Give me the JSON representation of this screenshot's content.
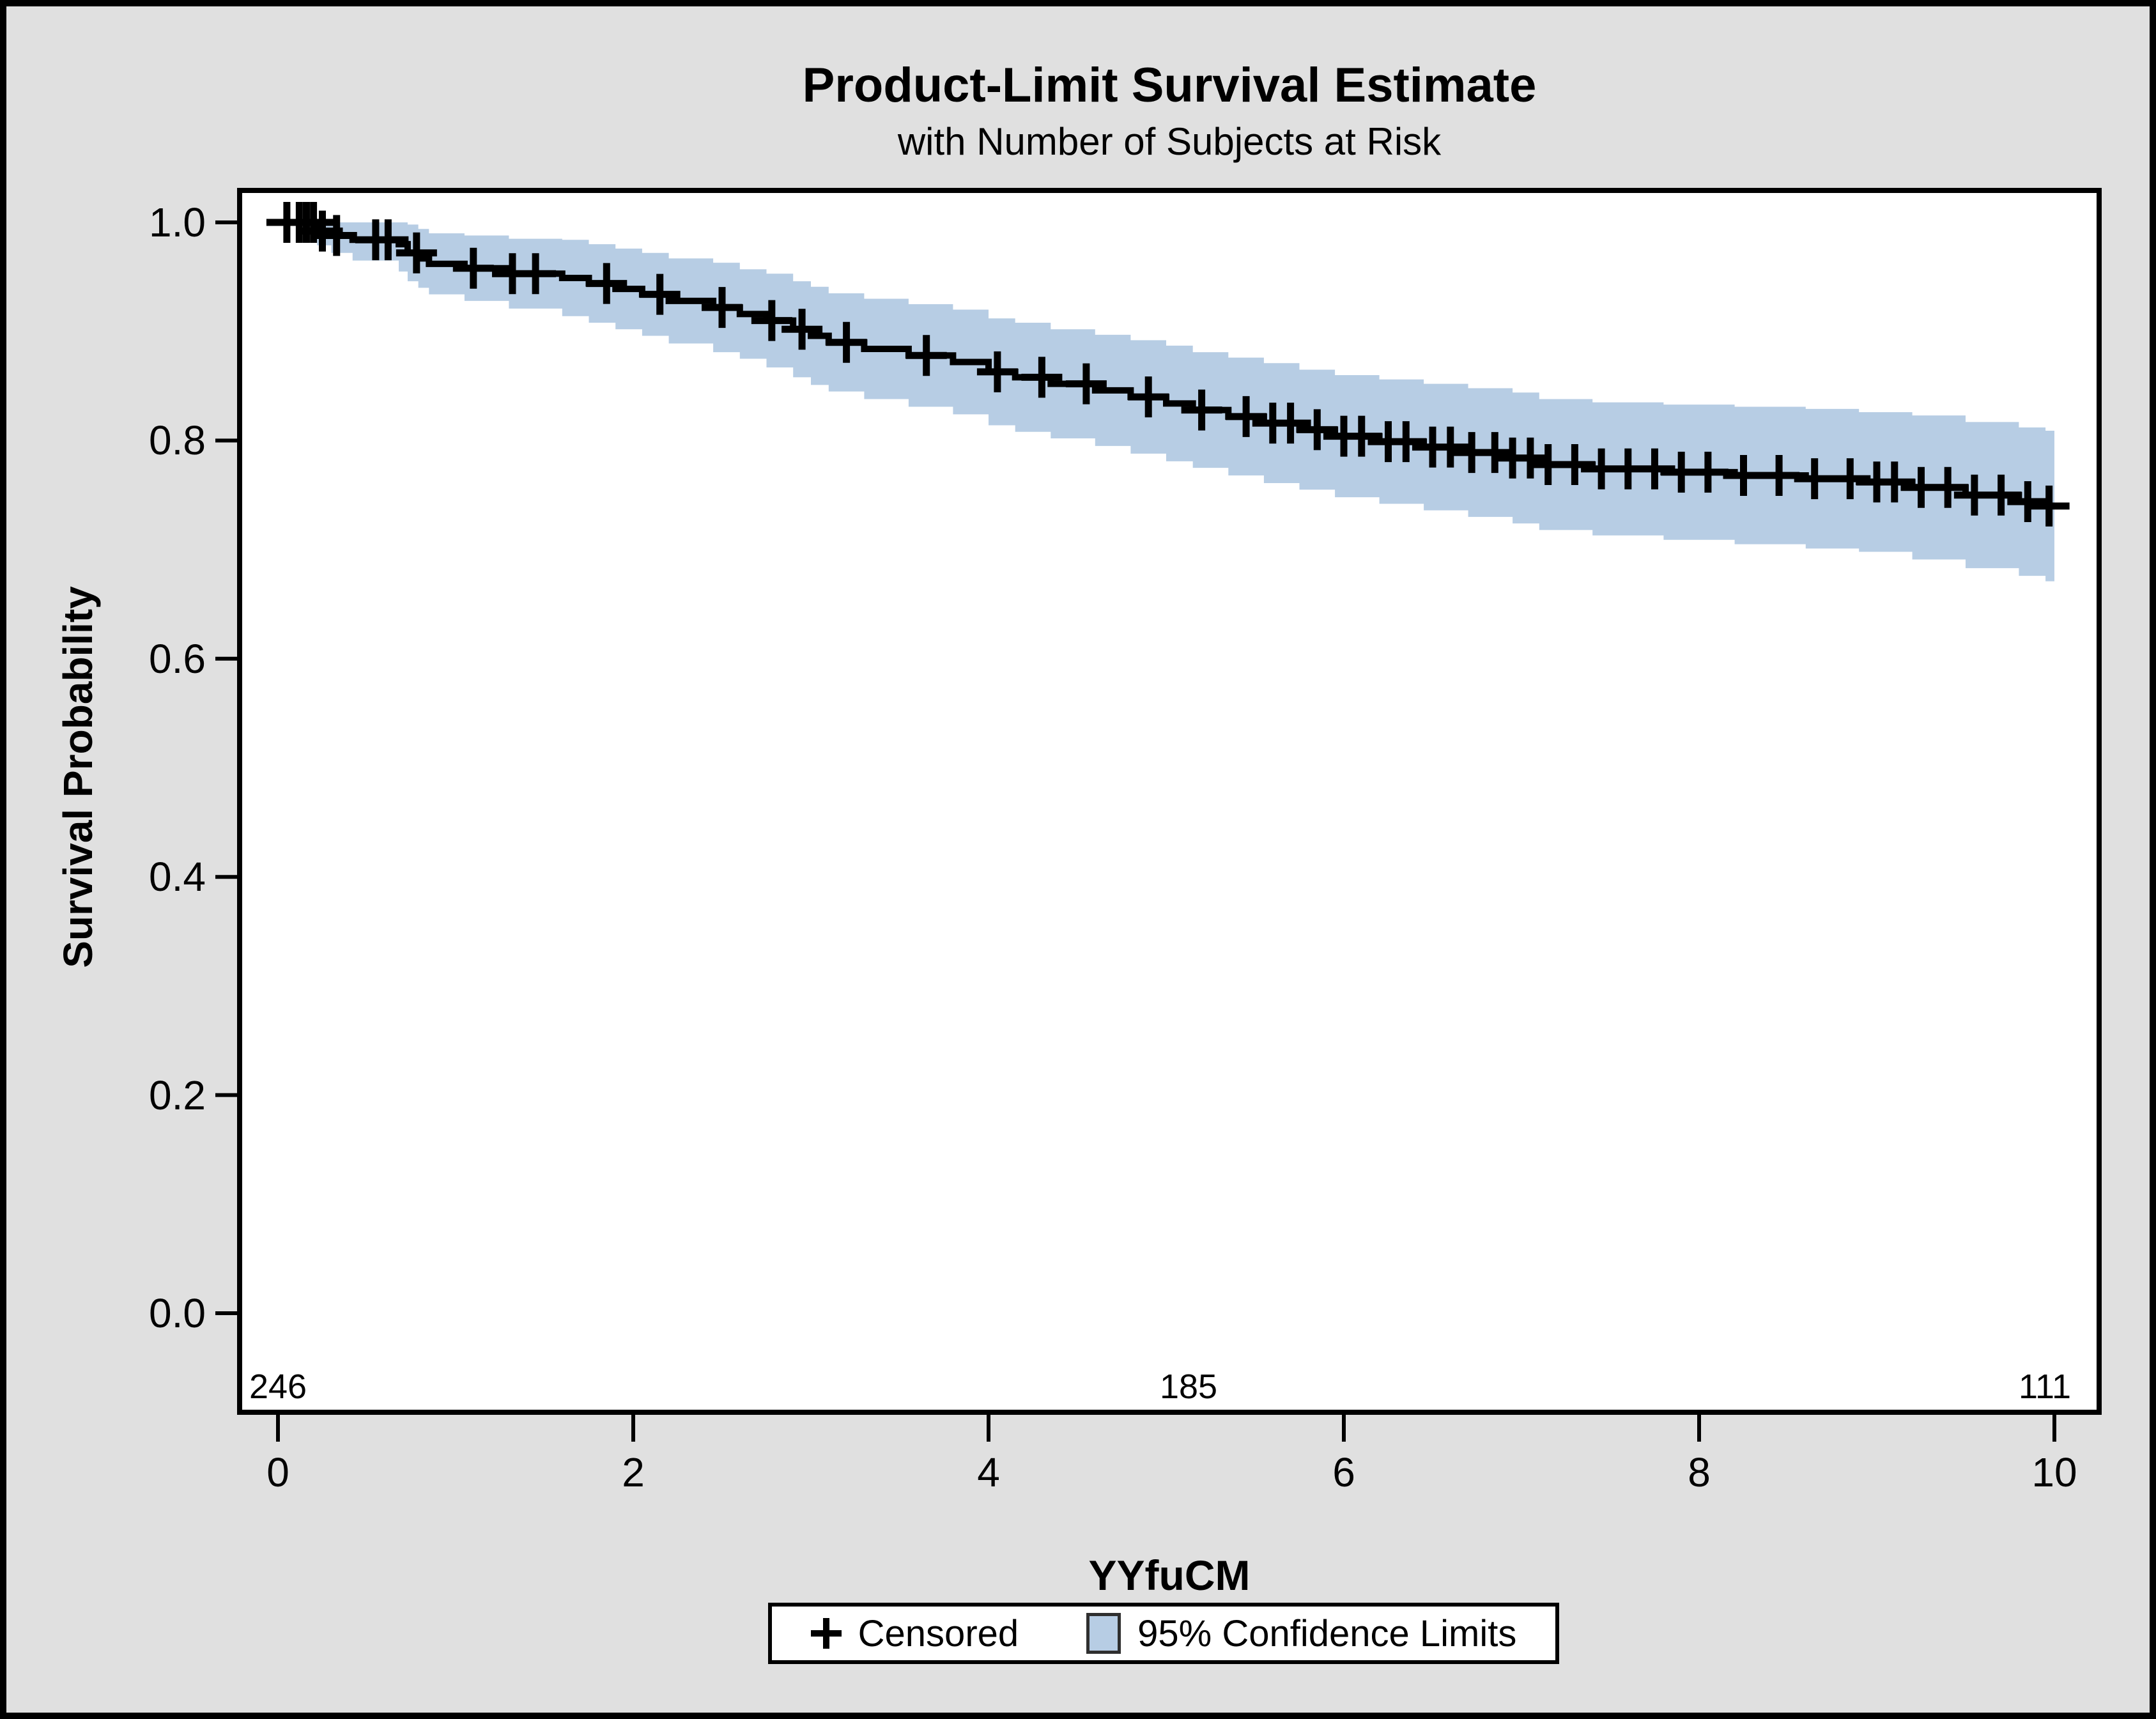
{
  "figure": {
    "title": "Product-Limit Survival Estimate",
    "subtitle": "with Number of Subjects at Risk",
    "background_color": "#e0e0e0",
    "plot_background_color": "#ffffff",
    "border_color": "#000000"
  },
  "legend": {
    "censored_symbol": "+",
    "censored_label": "Censored",
    "ci_label": "95% Confidence Limits",
    "swatch_color": "#b7cde4"
  },
  "chart_data": {
    "type": "line",
    "subtype": "kaplan-meier-step-survival",
    "title": "Product-Limit Survival Estimate",
    "subtitle": "with Number of Subjects at Risk",
    "xlabel": "YYfuCM",
    "ylabel": "Survival Probability",
    "xlim": [
      0,
      10
    ],
    "ylim": [
      0.0,
      1.0
    ],
    "grid": false,
    "legend_position": "bottom-outside",
    "x_tick_values": [
      0,
      2,
      4,
      6,
      8,
      10
    ],
    "x_tick_labels": [
      "0",
      "2",
      "4",
      "6",
      "8",
      "10"
    ],
    "y_tick_values": [
      1.0,
      0.8,
      0.6,
      0.4,
      0.2,
      0.0
    ],
    "y_tick_labels": [
      "1.0",
      "0.8",
      "0.6",
      "0.4",
      "0.2",
      "0.0"
    ],
    "line_color": "#000000",
    "band_color": "#b7cde4",
    "at_risk": {
      "times": [
        0,
        5,
        10
      ],
      "counts": [
        "246",
        "185",
        "111"
      ]
    },
    "steps_note": "each step entry is [time, survival, lower95, upper95]; survival holds until next time",
    "steps": [
      [
        0.0,
        1.0,
        1.0,
        1.0
      ],
      [
        0.22,
        0.992,
        0.979,
        1.0
      ],
      [
        0.3,
        0.988,
        0.972,
        1.0
      ],
      [
        0.42,
        0.984,
        0.965,
        1.0
      ],
      [
        0.68,
        0.98,
        0.955,
        1.0
      ],
      [
        0.73,
        0.972,
        0.946,
        0.998
      ],
      [
        0.79,
        0.967,
        0.94,
        0.994
      ],
      [
        0.85,
        0.962,
        0.934,
        0.99
      ],
      [
        1.05,
        0.958,
        0.928,
        0.988
      ],
      [
        1.3,
        0.953,
        0.921,
        0.985
      ],
      [
        1.6,
        0.949,
        0.914,
        0.984
      ],
      [
        1.75,
        0.944,
        0.908,
        0.98
      ],
      [
        1.9,
        0.939,
        0.902,
        0.976
      ],
      [
        2.05,
        0.934,
        0.896,
        0.972
      ],
      [
        2.2,
        0.928,
        0.889,
        0.967
      ],
      [
        2.45,
        0.922,
        0.881,
        0.963
      ],
      [
        2.6,
        0.916,
        0.875,
        0.957
      ],
      [
        2.75,
        0.91,
        0.867,
        0.953
      ],
      [
        2.9,
        0.902,
        0.858,
        0.946
      ],
      [
        3.0,
        0.896,
        0.851,
        0.941
      ],
      [
        3.1,
        0.89,
        0.845,
        0.935
      ],
      [
        3.3,
        0.884,
        0.838,
        0.93
      ],
      [
        3.55,
        0.878,
        0.831,
        0.925
      ],
      [
        3.8,
        0.872,
        0.824,
        0.92
      ],
      [
        4.0,
        0.863,
        0.814,
        0.912
      ],
      [
        4.15,
        0.858,
        0.808,
        0.908
      ],
      [
        4.35,
        0.852,
        0.802,
        0.902
      ],
      [
        4.6,
        0.846,
        0.795,
        0.897
      ],
      [
        4.8,
        0.84,
        0.788,
        0.892
      ],
      [
        5.0,
        0.834,
        0.781,
        0.887
      ],
      [
        5.15,
        0.828,
        0.775,
        0.881
      ],
      [
        5.35,
        0.822,
        0.768,
        0.876
      ],
      [
        5.55,
        0.816,
        0.761,
        0.871
      ],
      [
        5.75,
        0.81,
        0.755,
        0.865
      ],
      [
        5.95,
        0.804,
        0.748,
        0.86
      ],
      [
        6.2,
        0.799,
        0.742,
        0.856
      ],
      [
        6.45,
        0.794,
        0.736,
        0.852
      ],
      [
        6.7,
        0.789,
        0.73,
        0.848
      ],
      [
        6.95,
        0.784,
        0.724,
        0.844
      ],
      [
        7.1,
        0.778,
        0.718,
        0.838
      ],
      [
        7.4,
        0.774,
        0.713,
        0.835
      ],
      [
        7.8,
        0.771,
        0.709,
        0.833
      ],
      [
        8.2,
        0.768,
        0.705,
        0.831
      ],
      [
        8.6,
        0.765,
        0.701,
        0.829
      ],
      [
        8.9,
        0.762,
        0.698,
        0.826
      ],
      [
        9.2,
        0.757,
        0.691,
        0.823
      ],
      [
        9.5,
        0.75,
        0.683,
        0.817
      ],
      [
        9.8,
        0.744,
        0.676,
        0.812
      ],
      [
        9.95,
        0.74,
        0.671,
        0.809
      ]
    ],
    "censors_note": "each censor mark is [time, survival]",
    "censors": [
      [
        0.05,
        1.0
      ],
      [
        0.12,
        1.0
      ],
      [
        0.16,
        1.0
      ],
      [
        0.2,
        1.0
      ],
      [
        0.25,
        0.992
      ],
      [
        0.33,
        0.988
      ],
      [
        0.55,
        0.984
      ],
      [
        0.62,
        0.984
      ],
      [
        0.78,
        0.972
      ],
      [
        1.1,
        0.958
      ],
      [
        1.32,
        0.953
      ],
      [
        1.45,
        0.953
      ],
      [
        1.85,
        0.944
      ],
      [
        2.15,
        0.934
      ],
      [
        2.5,
        0.922
      ],
      [
        2.78,
        0.91
      ],
      [
        2.95,
        0.902
      ],
      [
        3.2,
        0.89
      ],
      [
        3.65,
        0.878
      ],
      [
        4.05,
        0.863
      ],
      [
        4.3,
        0.858
      ],
      [
        4.55,
        0.852
      ],
      [
        4.9,
        0.84
      ],
      [
        5.2,
        0.828
      ],
      [
        5.45,
        0.822
      ],
      [
        5.6,
        0.816
      ],
      [
        5.7,
        0.816
      ],
      [
        5.85,
        0.81
      ],
      [
        6.0,
        0.804
      ],
      [
        6.1,
        0.804
      ],
      [
        6.25,
        0.799
      ],
      [
        6.35,
        0.799
      ],
      [
        6.5,
        0.794
      ],
      [
        6.6,
        0.794
      ],
      [
        6.72,
        0.789
      ],
      [
        6.85,
        0.789
      ],
      [
        6.95,
        0.784
      ],
      [
        7.05,
        0.784
      ],
      [
        7.15,
        0.778
      ],
      [
        7.3,
        0.778
      ],
      [
        7.45,
        0.774
      ],
      [
        7.6,
        0.774
      ],
      [
        7.75,
        0.774
      ],
      [
        7.9,
        0.771
      ],
      [
        8.05,
        0.771
      ],
      [
        8.25,
        0.768
      ],
      [
        8.45,
        0.768
      ],
      [
        8.65,
        0.765
      ],
      [
        8.85,
        0.765
      ],
      [
        9.0,
        0.762
      ],
      [
        9.1,
        0.762
      ],
      [
        9.25,
        0.757
      ],
      [
        9.4,
        0.757
      ],
      [
        9.55,
        0.75
      ],
      [
        9.7,
        0.75
      ],
      [
        9.85,
        0.744
      ],
      [
        9.97,
        0.74
      ]
    ]
  }
}
